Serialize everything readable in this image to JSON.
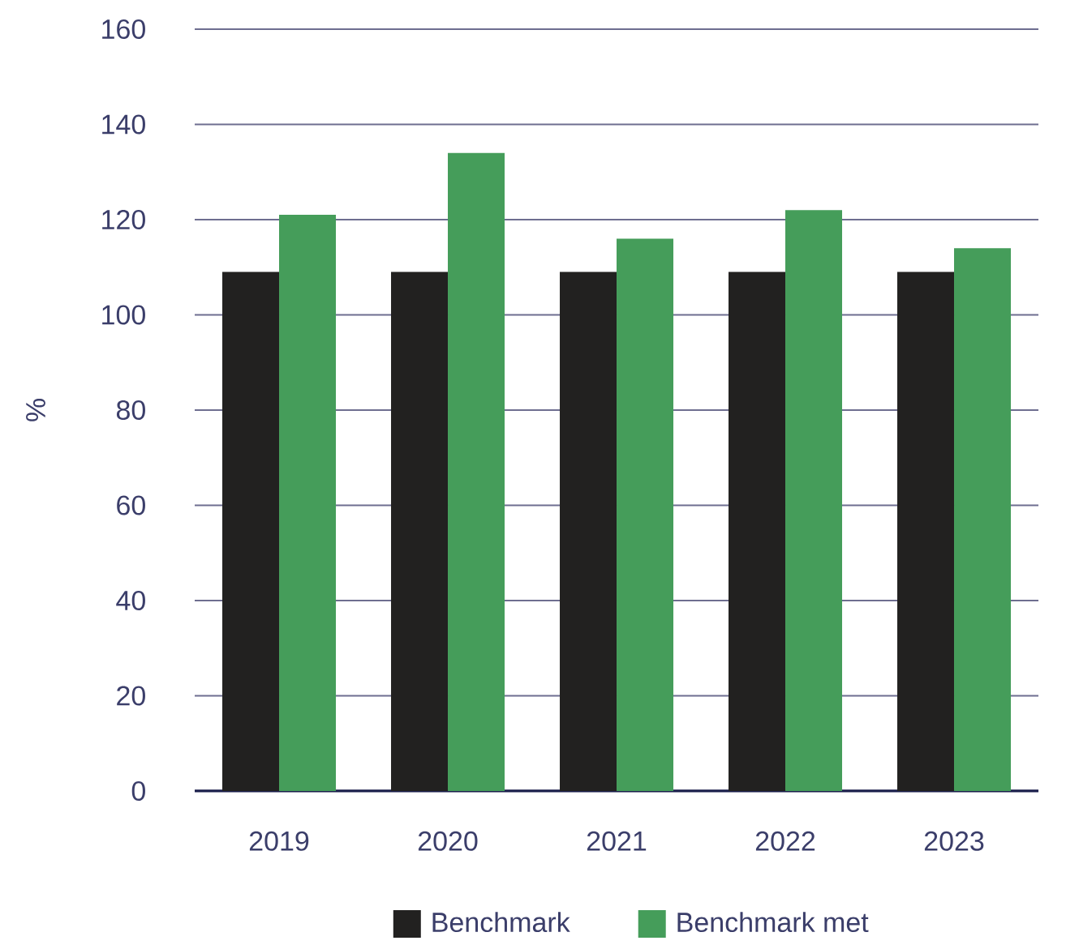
{
  "chart_data": {
    "type": "bar",
    "categories": [
      "2019",
      "2020",
      "2021",
      "2022",
      "2023"
    ],
    "ylabel": "%",
    "series": [
      {
        "name": "Benchmark",
        "color": "#222120",
        "values": [
          109,
          109,
          109,
          109,
          109
        ]
      },
      {
        "name": "Benchmark met",
        "color": "#459d5a",
        "values": [
          121,
          134,
          116,
          122,
          114
        ]
      }
    ],
    "ylim": [
      0,
      160
    ],
    "yticks": [
      0,
      20,
      40,
      60,
      80,
      100,
      120,
      140,
      160
    ],
    "grid": "y",
    "legend": "bottom"
  }
}
